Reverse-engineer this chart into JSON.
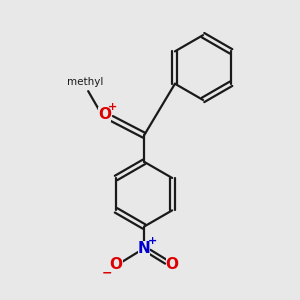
{
  "bg_color": "#e8e8e8",
  "bond_color": "#1a1a1a",
  "bond_width": 1.6,
  "atom_colors": {
    "O_plus": "#dd0000",
    "N_plus": "#0000cc",
    "O_minus": "#dd0000",
    "O": "#dd0000"
  },
  "font_size": 11
}
